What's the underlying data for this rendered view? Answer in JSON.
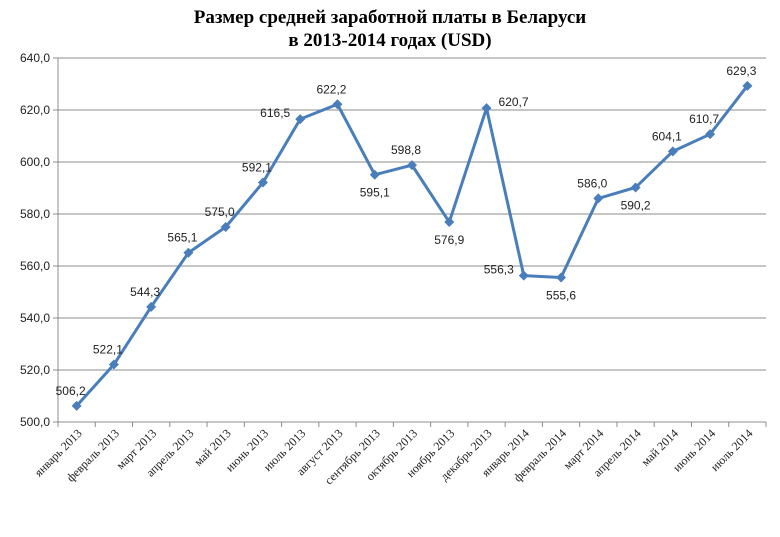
{
  "chart_data": {
    "type": "line",
    "title": "Размер средней заработной платы в Беларуси",
    "subtitle": "в 2013-2014 годах (USD)",
    "xlabel": "",
    "ylabel": "",
    "categories": [
      "январь 2013",
      "февраль 2013",
      "март 2013",
      "апрель 2013",
      "май 2013",
      "июнь 2013",
      "июль 2013",
      "август 2013",
      "сентябрь 2013",
      "октябрь 2013",
      "ноябрь 2013",
      "декабрь 2013",
      "январь 2014",
      "февраль 2014",
      "март 2014",
      "апрель 2014",
      "май 2014",
      "июнь 2014",
      "июль 2014"
    ],
    "values": [
      506.2,
      522.1,
      544.3,
      565.1,
      575.0,
      592.1,
      616.5,
      622.2,
      595.1,
      598.8,
      576.9,
      620.7,
      556.3,
      555.6,
      586.0,
      590.2,
      604.1,
      610.7,
      629.3
    ],
    "value_labels": [
      "506,2",
      "522,1",
      "544,3",
      "565,1",
      "575,0",
      "592,1",
      "616,5",
      "622,2",
      "595,1",
      "598,8",
      "576,9",
      "620,7",
      "556,3",
      "555,6",
      "586,0",
      "590,2",
      "604,1",
      "610,7",
      "629,3"
    ],
    "ylim": [
      500,
      640
    ],
    "y_ticks": [
      "500,0",
      "520,0",
      "540,0",
      "560,0",
      "580,0",
      "600,0",
      "620,0",
      "640,0"
    ],
    "grid": true,
    "legend": "none",
    "line_color": "#4a7ebb",
    "grid_color": "#8c8c8c"
  }
}
